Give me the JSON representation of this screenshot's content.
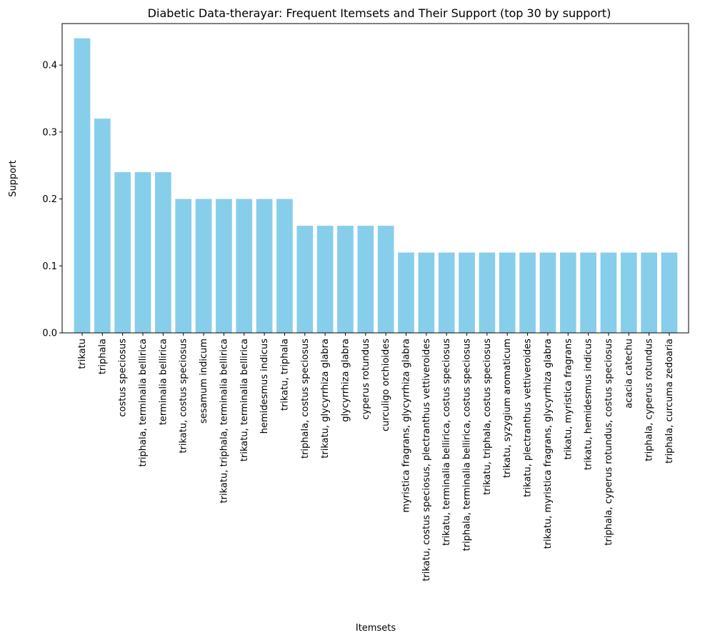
{
  "chart_data": {
    "type": "bar",
    "title": "Diabetic Data-therayar: Frequent Itemsets and Their Support (top 30 by support)",
    "xlabel": "Itemsets",
    "ylabel": "Support",
    "ylim": [
      0,
      0.462
    ],
    "yticks": [
      0.0,
      0.1,
      0.2,
      0.3,
      0.4
    ],
    "ytick_labels": [
      "0.0",
      "0.1",
      "0.2",
      "0.3",
      "0.4"
    ],
    "bar_color": "#87CEEB",
    "grid": false,
    "legend": "none",
    "categories": [
      "trikatu",
      "triphala",
      "costus speciosus",
      "triphala, terminalia bellirica",
      "terminalia bellirica",
      "trikatu, costus speciosus",
      "sesamum indicum",
      "trikatu, triphala, terminalia bellirica",
      "trikatu, terminalia bellirica",
      "hemidesmus indicus",
      "trikatu, triphala",
      "triphala, costus speciosus",
      "trikatu, glycyrrhiza glabra",
      "glycyrrhiza glabra",
      "cyperus rotundus",
      "curculigo orchioides",
      "myristica fragrans, glycyrrhiza glabra",
      "trikatu, costus speciosus, plectranthus vettiveroides",
      "trikatu, terminalia bellirica, costus speciosus",
      "triphala, terminalia bellirica, costus speciosus",
      "trikatu, triphala, costus speciosus",
      "trikatu, syzygium aromaticum",
      "trikatu, plectranthus vettiveroides",
      "trikatu, myristica fragrans, glycyrrhiza glabra",
      "trikatu, myristica fragrans",
      "trikatu, hemidesmus indicus",
      "triphala, cyperus rotundus, costus speciosus",
      "acacia catechu",
      "triphala, cyperus rotundus",
      "triphala, curcuma zedoaria"
    ],
    "values": [
      0.44,
      0.32,
      0.24,
      0.24,
      0.24,
      0.2,
      0.2,
      0.2,
      0.2,
      0.2,
      0.2,
      0.16,
      0.16,
      0.16,
      0.16,
      0.16,
      0.12,
      0.12,
      0.12,
      0.12,
      0.12,
      0.12,
      0.12,
      0.12,
      0.12,
      0.12,
      0.12,
      0.12,
      0.12,
      0.12
    ]
  }
}
